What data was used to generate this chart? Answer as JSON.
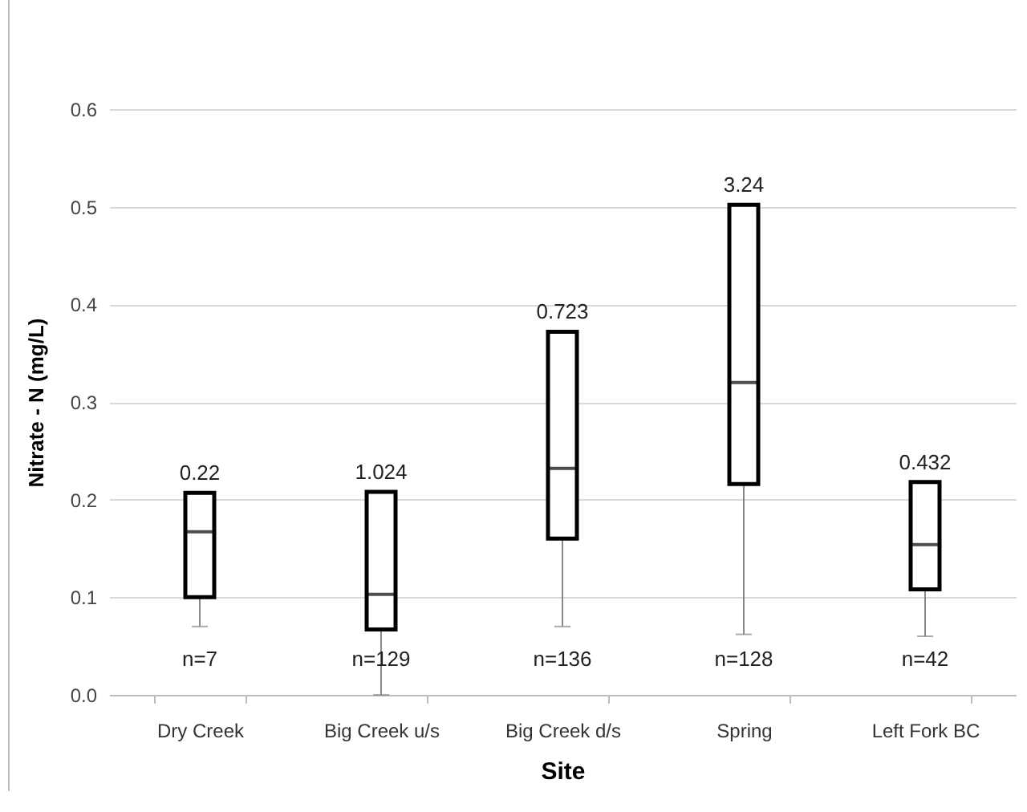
{
  "chart_data": {
    "type": "box",
    "xlabel": "Site",
    "ylabel": "Nitrate - N (mg/L)",
    "categories": [
      "Dry Creek",
      "Big Creek  u/s",
      "Big Creek d/s",
      "Spring",
      "Left Fork BC"
    ],
    "boxes": [
      {
        "low": 0.07,
        "q1": 0.1,
        "median": 0.167,
        "q3": 0.207,
        "high": 0.207
      },
      {
        "low": 0.0,
        "q1": 0.067,
        "median": 0.103,
        "q3": 0.208,
        "high": 0.208
      },
      {
        "low": 0.07,
        "q1": 0.16,
        "median": 0.232,
        "q3": 0.372,
        "high": 0.372
      },
      {
        "low": 0.062,
        "q1": 0.216,
        "median": 0.32,
        "q3": 0.502,
        "high": 0.502
      },
      {
        "low": 0.06,
        "q1": 0.108,
        "median": 0.154,
        "q3": 0.218,
        "high": 0.218
      }
    ],
    "ylim": [
      0,
      0.6
    ],
    "yticks": [
      {
        "value": 0,
        "label": "0.0"
      },
      0.1,
      0.2,
      0.3,
      0.4,
      0.5,
      0.6
    ],
    "grid": "y",
    "annotations": [
      "0.22",
      "1.024",
      "0.723",
      "3.24",
      "0.432",
      "n=7",
      "n=129",
      "n=136",
      "n=128",
      "n=42"
    ]
  }
}
